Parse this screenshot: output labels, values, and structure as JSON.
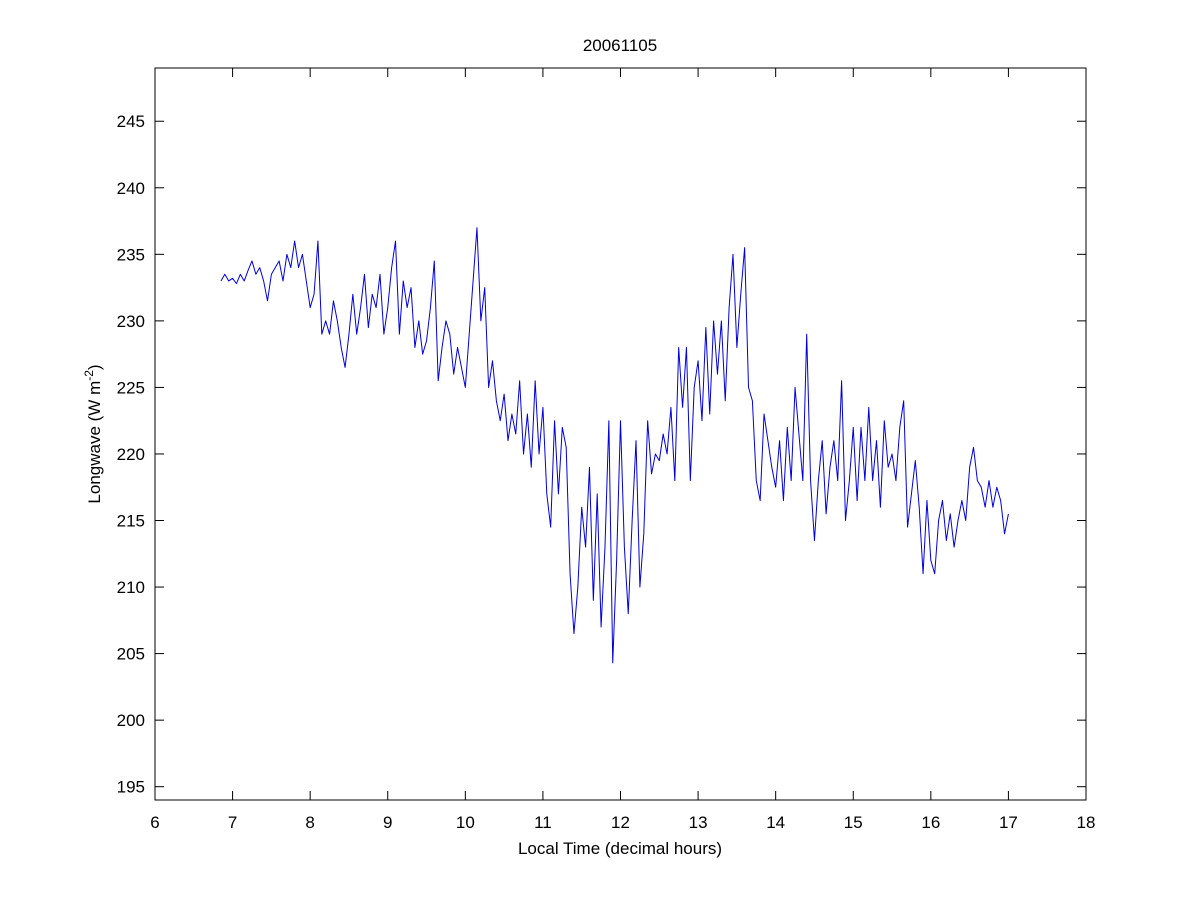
{
  "chart_data": {
    "type": "line",
    "title": "20061105",
    "xlabel": "Local Time (decimal hours)",
    "ylabel": {
      "text": "Longwave (W m",
      "superscript": "-2",
      "suffix": ")"
    },
    "color": "#0000dd",
    "xlim": [
      6,
      18
    ],
    "xticks": [
      6,
      7,
      8,
      9,
      10,
      11,
      12,
      13,
      14,
      15,
      16,
      17,
      18
    ],
    "ylim": [
      194,
      249
    ],
    "yticks": [
      195,
      200,
      205,
      210,
      215,
      220,
      225,
      230,
      235,
      240,
      245
    ],
    "box": true,
    "x": [
      6.85,
      6.9,
      6.95,
      7.0,
      7.05,
      7.1,
      7.15,
      7.2,
      7.25,
      7.3,
      7.35,
      7.4,
      7.45,
      7.5,
      7.55,
      7.6,
      7.65,
      7.7,
      7.75,
      7.8,
      7.85,
      7.9,
      7.95,
      8.0,
      8.05,
      8.1,
      8.15,
      8.2,
      8.25,
      8.3,
      8.35,
      8.4,
      8.45,
      8.5,
      8.55,
      8.6,
      8.65,
      8.7,
      8.75,
      8.8,
      8.85,
      8.9,
      8.95,
      9.0,
      9.05,
      9.1,
      9.15,
      9.2,
      9.25,
      9.3,
      9.35,
      9.4,
      9.45,
      9.5,
      9.55,
      9.6,
      9.65,
      9.7,
      9.75,
      9.8,
      9.85,
      9.9,
      9.95,
      10.0,
      10.05,
      10.1,
      10.15,
      10.2,
      10.25,
      10.3,
      10.35,
      10.4,
      10.45,
      10.5,
      10.55,
      10.6,
      10.65,
      10.7,
      10.75,
      10.8,
      10.85,
      10.9,
      10.95,
      11.0,
      11.05,
      11.1,
      11.15,
      11.2,
      11.25,
      11.3,
      11.35,
      11.4,
      11.45,
      11.5,
      11.55,
      11.6,
      11.65,
      11.7,
      11.75,
      11.8,
      11.85,
      11.9,
      11.95,
      12.0,
      12.05,
      12.1,
      12.15,
      12.2,
      12.25,
      12.3,
      12.35,
      12.4,
      12.45,
      12.5,
      12.55,
      12.6,
      12.65,
      12.7,
      12.75,
      12.8,
      12.85,
      12.9,
      12.95,
      13.0,
      13.05,
      13.1,
      13.15,
      13.2,
      13.25,
      13.3,
      13.35,
      13.4,
      13.45,
      13.5,
      13.55,
      13.6,
      13.65,
      13.7,
      13.75,
      13.8,
      13.85,
      13.9,
      13.95,
      14.0,
      14.05,
      14.1,
      14.15,
      14.2,
      14.25,
      14.3,
      14.35,
      14.4,
      14.45,
      14.5,
      14.55,
      14.6,
      14.65,
      14.7,
      14.75,
      14.8,
      14.85,
      14.9,
      14.95,
      15.0,
      15.05,
      15.1,
      15.15,
      15.2,
      15.25,
      15.3,
      15.35,
      15.4,
      15.45,
      15.5,
      15.55,
      15.6,
      15.65,
      15.7,
      15.75,
      15.8,
      15.85,
      15.9,
      15.95,
      16.0,
      16.05,
      16.1,
      16.15,
      16.2,
      16.25,
      16.3,
      16.35,
      16.4,
      16.45,
      16.5,
      16.55,
      16.6,
      16.65,
      16.7,
      16.75,
      16.8,
      16.85,
      16.9,
      16.95,
      17.0
    ],
    "values": [
      233,
      233.5,
      233,
      233.2,
      232.8,
      233.5,
      233,
      233.8,
      234.5,
      233.5,
      234,
      233,
      231.5,
      233.5,
      234,
      234.5,
      233,
      235,
      234,
      236,
      234,
      235,
      233,
      231,
      232,
      236,
      229,
      230,
      229,
      231.5,
      230,
      228,
      226.5,
      229,
      232,
      229,
      231,
      233.5,
      229.5,
      232,
      231,
      233.5,
      229,
      231,
      234,
      236,
      229,
      233,
      231,
      232.5,
      228,
      230,
      227.5,
      228.5,
      231,
      234.5,
      225.5,
      228,
      230,
      229,
      226,
      228,
      226.5,
      225,
      229,
      233,
      237,
      230,
      232.5,
      225,
      227,
      224,
      222.5,
      224.5,
      221,
      223,
      221.5,
      225.5,
      220,
      223,
      219,
      225.5,
      220,
      223.5,
      217,
      214.5,
      222.5,
      217,
      222,
      220.5,
      211,
      206.5,
      210,
      216,
      213,
      219,
      209,
      217,
      207,
      213,
      222.5,
      204.3,
      212,
      222.5,
      213,
      208,
      215,
      221,
      210,
      214,
      222.5,
      218.5,
      220,
      219.5,
      221.5,
      220,
      223.5,
      218,
      228,
      223.5,
      228,
      218,
      225,
      227,
      222.5,
      229.5,
      223,
      230,
      226,
      230,
      224,
      231,
      235,
      228,
      232,
      235.5,
      225,
      224,
      218,
      216.5,
      223,
      221,
      219,
      217.5,
      221,
      216.5,
      222,
      218,
      225,
      221.5,
      218,
      229,
      218,
      213.5,
      218,
      221,
      215.5,
      219,
      221,
      218,
      225.5,
      215,
      218,
      222,
      216.5,
      222,
      218,
      223.5,
      218,
      221,
      216,
      222.5,
      219,
      220,
      218,
      222,
      224,
      214.5,
      217,
      219.5,
      216,
      211,
      216.5,
      212,
      211,
      215,
      216.5,
      213.5,
      215.5,
      213,
      215,
      216.5,
      215,
      219,
      220.5,
      218,
      217.5,
      216,
      218,
      216,
      217.5,
      216.5,
      214,
      215.5
    ]
  }
}
